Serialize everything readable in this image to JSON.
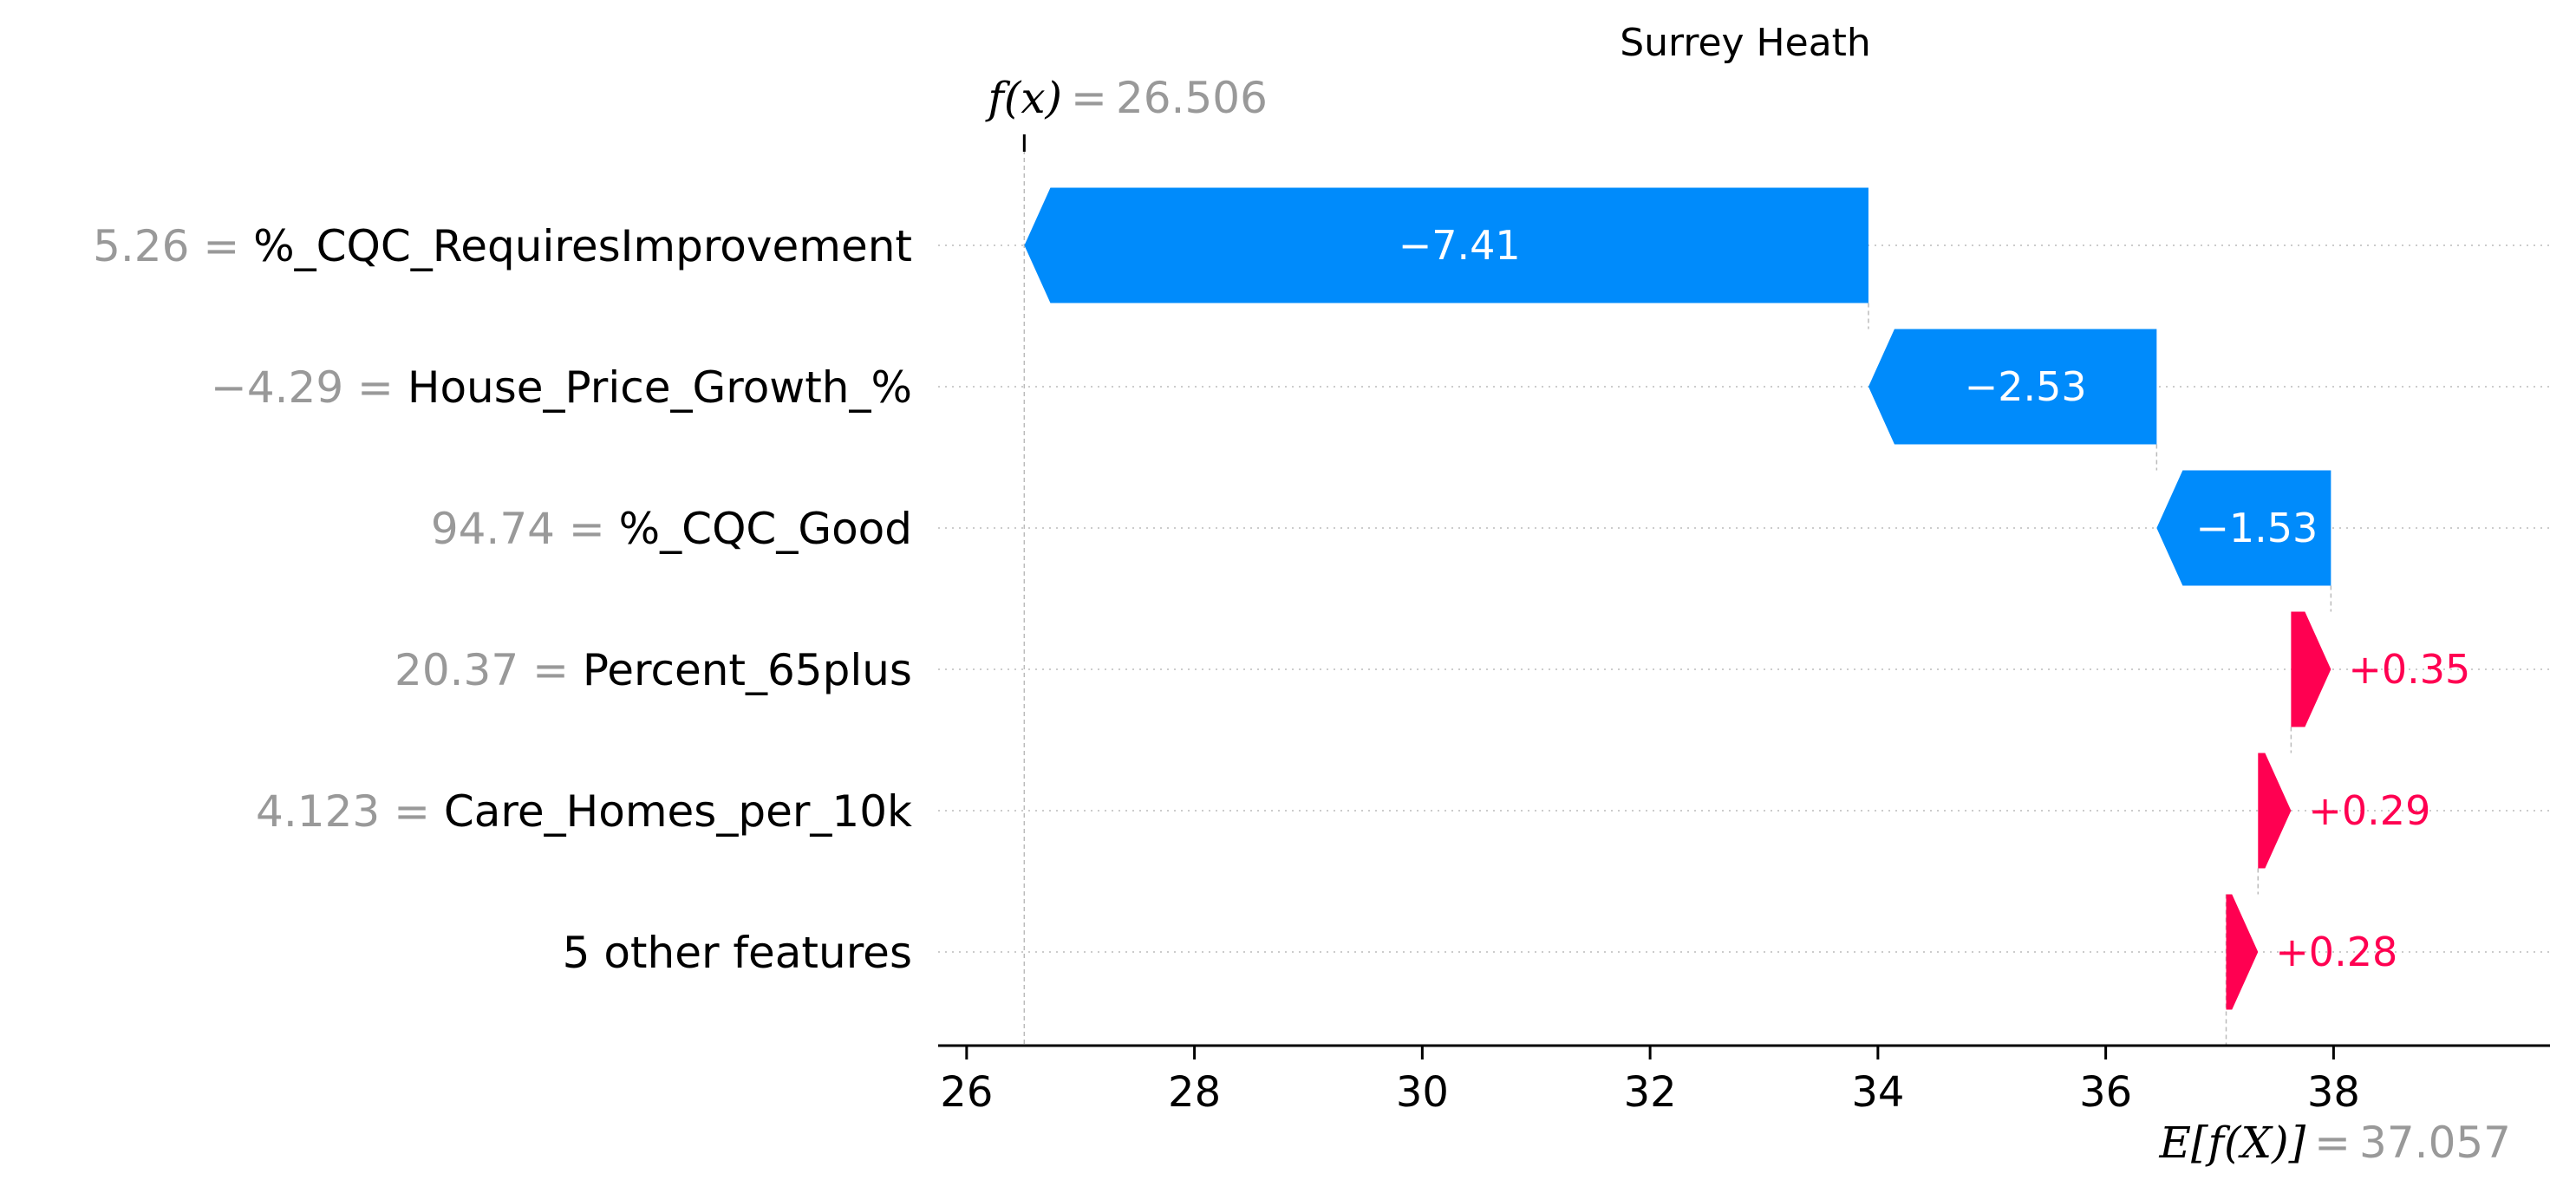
{
  "chart_data": {
    "type": "bar",
    "subtype": "shap-waterfall",
    "title": "Surrey Heath",
    "fx": {
      "label": "f(x)",
      "eq": "=",
      "value": 26.506,
      "value_text": "26.506"
    },
    "ex": {
      "label": "E[f(X)]",
      "eq": "=",
      "value": 37.057,
      "value_text": "37.057"
    },
    "features": [
      {
        "value_text": "5.26",
        "name": "%_CQC_RequiresImprovement",
        "shap": -7.41,
        "label": "−7.41"
      },
      {
        "value_text": "−4.29",
        "name": "House_Price_Growth_%",
        "shap": -2.53,
        "label": "−2.53"
      },
      {
        "value_text": "94.74",
        "name": "%_CQC_Good",
        "shap": -1.53,
        "label": "−1.53"
      },
      {
        "value_text": "20.37",
        "name": "Percent_65plus",
        "shap": 0.35,
        "label": "+0.35"
      },
      {
        "value_text": "4.123",
        "name": "Care_Homes_per_10k",
        "shap": 0.29,
        "label": "+0.29"
      },
      {
        "value_text": "",
        "name": "5 other features",
        "shap": 0.28,
        "label": "+0.28"
      }
    ],
    "xticks": [
      26,
      28,
      30,
      32,
      34,
      36,
      38
    ],
    "xlim": [
      25.75,
      39.9
    ],
    "grid": "horizontal dotted",
    "colors": {
      "positive": "#ff0051",
      "negative": "#008bfb",
      "muted": "#999999"
    }
  }
}
